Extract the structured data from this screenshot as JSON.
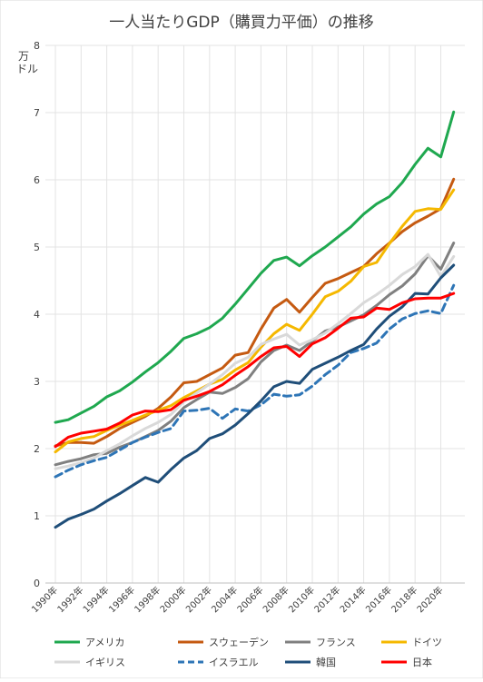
{
  "chart_data": {
    "type": "line",
    "title": "一人当たりGDP（購買力平価）の推移",
    "ylabel": "万ドル",
    "ylim": [
      0,
      8
    ],
    "yticks": [
      0,
      1,
      2,
      3,
      4,
      5,
      6,
      7,
      8
    ],
    "grid": true,
    "legend_position": "bottom",
    "x": [
      1990,
      1991,
      1992,
      1993,
      1994,
      1995,
      1996,
      1997,
      1998,
      1999,
      2000,
      2001,
      2002,
      2003,
      2004,
      2005,
      2006,
      2007,
      2008,
      2009,
      2010,
      2011,
      2012,
      2013,
      2014,
      2015,
      2016,
      2017,
      2018,
      2019,
      2020,
      2021
    ],
    "x_tick_labels": [
      "1990年",
      "1992年",
      "1994年",
      "1996年",
      "1998年",
      "2000年",
      "2002年",
      "2004年",
      "2006年",
      "2008年",
      "2010年",
      "2012年",
      "2014年",
      "2016年",
      "2018年",
      "2020年"
    ],
    "series": [
      {
        "name": "アメリカ",
        "color": "#1fa84f",
        "dash": false,
        "values": [
          2.39,
          2.43,
          2.53,
          2.63,
          2.77,
          2.86,
          2.99,
          3.14,
          3.28,
          3.45,
          3.64,
          3.71,
          3.8,
          3.94,
          4.15,
          4.38,
          4.61,
          4.8,
          4.85,
          4.72,
          4.87,
          5.0,
          5.15,
          5.3,
          5.49,
          5.64,
          5.75,
          5.96,
          6.23,
          6.47,
          6.34,
          7.01
        ]
      },
      {
        "name": "スウェーデン",
        "color": "#c55a11",
        "dash": false,
        "values": [
          2.04,
          2.09,
          2.09,
          2.08,
          2.18,
          2.3,
          2.39,
          2.48,
          2.6,
          2.77,
          2.98,
          3.0,
          3.1,
          3.2,
          3.39,
          3.43,
          3.78,
          4.09,
          4.22,
          4.03,
          4.25,
          4.46,
          4.53,
          4.62,
          4.71,
          4.9,
          5.06,
          5.23,
          5.36,
          5.46,
          5.57,
          6.01
        ]
      },
      {
        "name": "フランス",
        "color": "#808080",
        "dash": false,
        "values": [
          1.76,
          1.81,
          1.85,
          1.91,
          1.93,
          2.02,
          2.09,
          2.18,
          2.27,
          2.41,
          2.61,
          2.73,
          2.84,
          2.82,
          2.91,
          3.04,
          3.29,
          3.46,
          3.54,
          3.46,
          3.6,
          3.75,
          3.81,
          3.9,
          3.99,
          4.13,
          4.29,
          4.42,
          4.6,
          4.87,
          4.67,
          5.06
        ]
      },
      {
        "name": "ドイツ",
        "color": "#f5b800",
        "dash": false,
        "values": [
          1.95,
          2.1,
          2.15,
          2.18,
          2.27,
          2.35,
          2.42,
          2.5,
          2.57,
          2.64,
          2.76,
          2.86,
          2.96,
          3.03,
          3.17,
          3.28,
          3.51,
          3.71,
          3.85,
          3.76,
          4.0,
          4.26,
          4.34,
          4.49,
          4.71,
          4.77,
          5.05,
          5.31,
          5.53,
          5.57,
          5.56,
          5.85
        ]
      },
      {
        "name": "イギリス",
        "color": "#d9d9d9",
        "dash": false,
        "values": [
          1.7,
          1.74,
          1.79,
          1.86,
          1.97,
          2.07,
          2.19,
          2.3,
          2.39,
          2.51,
          2.7,
          2.83,
          2.96,
          3.1,
          3.27,
          3.36,
          3.55,
          3.63,
          3.7,
          3.54,
          3.62,
          3.72,
          3.86,
          4.01,
          4.17,
          4.29,
          4.43,
          4.59,
          4.71,
          4.89,
          4.56,
          4.86
        ]
      },
      {
        "name": "イスラエル",
        "color": "#2e75b6",
        "dash": true,
        "values": [
          1.58,
          1.68,
          1.76,
          1.82,
          1.87,
          1.98,
          2.09,
          2.17,
          2.24,
          2.3,
          2.56,
          2.57,
          2.6,
          2.45,
          2.59,
          2.56,
          2.65,
          2.81,
          2.78,
          2.8,
          2.93,
          3.1,
          3.24,
          3.43,
          3.49,
          3.57,
          3.78,
          3.93,
          4.01,
          4.05,
          4.01,
          4.43
        ]
      },
      {
        "name": "韓国",
        "color": "#1f4e79",
        "dash": false,
        "values": [
          0.83,
          0.95,
          1.02,
          1.1,
          1.22,
          1.33,
          1.45,
          1.57,
          1.5,
          1.69,
          1.86,
          1.97,
          2.15,
          2.22,
          2.35,
          2.52,
          2.71,
          2.92,
          3.0,
          2.97,
          3.18,
          3.27,
          3.36,
          3.46,
          3.55,
          3.78,
          3.97,
          4.11,
          4.31,
          4.3,
          4.54,
          4.73
        ]
      },
      {
        "name": "日本",
        "color": "#ff0000",
        "dash": false,
        "values": [
          2.03,
          2.17,
          2.23,
          2.26,
          2.29,
          2.38,
          2.5,
          2.56,
          2.55,
          2.58,
          2.72,
          2.78,
          2.85,
          2.95,
          3.09,
          3.22,
          3.37,
          3.5,
          3.52,
          3.37,
          3.56,
          3.65,
          3.79,
          3.94,
          3.96,
          4.09,
          4.07,
          4.17,
          4.23,
          4.24,
          4.24,
          4.31
        ]
      }
    ]
  }
}
